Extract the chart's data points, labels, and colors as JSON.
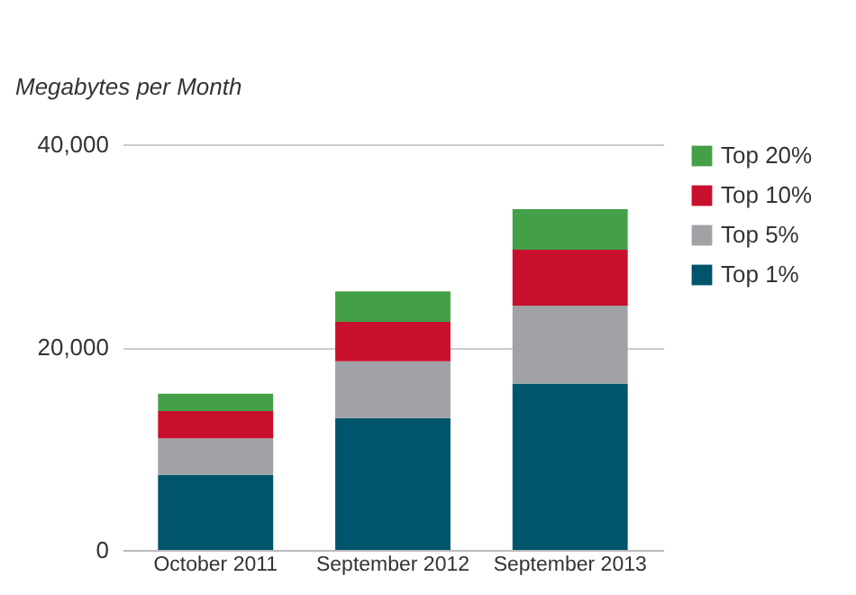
{
  "chart_data": {
    "type": "bar",
    "stacked": true,
    "ylabel": "Megabytes per Month",
    "categories": [
      "October 2011",
      "September 2012",
      "September 2013"
    ],
    "series": [
      {
        "name": "Top 1%",
        "color": "#00546b",
        "values": [
          7400,
          13000,
          16400
        ]
      },
      {
        "name": "Top 5%",
        "color": "#a0a2a5",
        "values": [
          3600,
          5600,
          7700
        ]
      },
      {
        "name": "Top 10%",
        "color": "#c8102e",
        "values": [
          2700,
          3900,
          5500
        ]
      },
      {
        "name": "Top 20%",
        "color": "#43a047",
        "values": [
          1700,
          3000,
          4000
        ]
      }
    ],
    "ylim": [
      0,
      40000
    ],
    "yticks": [
      0,
      {
        "value": 20000,
        "label": "20,000"
      },
      {
        "value": 40000,
        "label": "40,000"
      }
    ],
    "grid": "y",
    "legend": "right"
  }
}
